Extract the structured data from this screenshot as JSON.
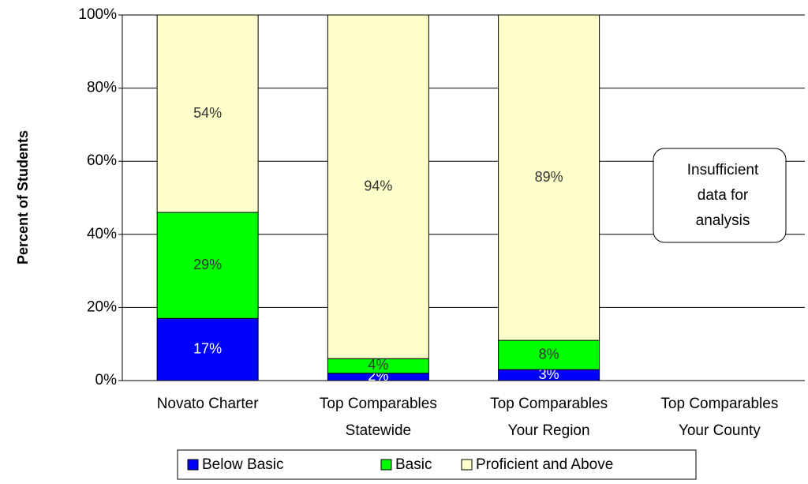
{
  "chart_data": {
    "type": "stacked_bar",
    "ylabel": "Percent of Students",
    "categories": [
      [
        "Novato Charter"
      ],
      [
        "Top Comparables",
        "Statewide"
      ],
      [
        "Top Comparables",
        "Your Region"
      ],
      [
        "Top Comparables",
        "Your County"
      ]
    ],
    "series": [
      {
        "name": "Below Basic",
        "color": "#0000ff",
        "label_color": "#ffffff",
        "values": [
          17,
          2,
          3,
          null
        ],
        "value_labels": [
          "17%",
          "2%",
          "3%",
          null
        ]
      },
      {
        "name": "Basic",
        "color": "#00ff00",
        "label_color": "#333333",
        "values": [
          29,
          4,
          8,
          null
        ],
        "value_labels": [
          "29%",
          "4%",
          "8%",
          null
        ]
      },
      {
        "name": "Proficient and Above",
        "color": "#ffffcc",
        "label_color": "#333333",
        "values": [
          54,
          94,
          89,
          null
        ],
        "value_labels": [
          "54%",
          "94%",
          "89%",
          null
        ]
      }
    ],
    "ylim": [
      0,
      100
    ],
    "yticks": [
      {
        "value": 0,
        "label": "0%"
      },
      {
        "value": 20,
        "label": "20%"
      },
      {
        "value": 40,
        "label": "40%"
      },
      {
        "value": 60,
        "label": "60%"
      },
      {
        "value": 80,
        "label": "80%"
      },
      {
        "value": 100,
        "label": "100%"
      }
    ],
    "grid": true,
    "legend": "bottom",
    "annotation": [
      "Insufficient",
      "data for",
      "analysis"
    ]
  }
}
